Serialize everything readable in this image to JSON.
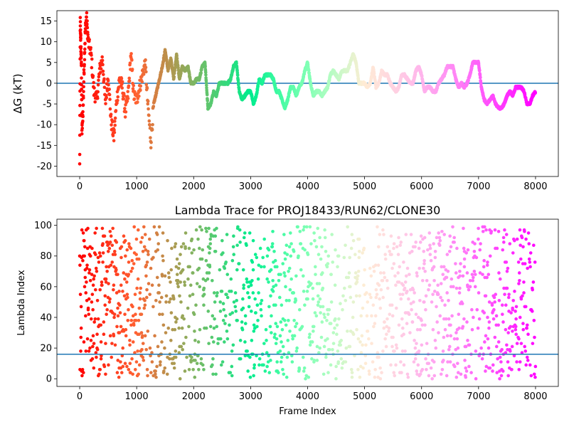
{
  "chart_data": [
    {
      "type": "scatter",
      "title": "",
      "xlabel": "",
      "ylabel": "ΔG (kT)",
      "xlim": [
        -400,
        8400
      ],
      "ylim": [
        -22.5,
        17.5
      ],
      "xticks": [
        0,
        1000,
        2000,
        3000,
        4000,
        5000,
        6000,
        7000,
        8000
      ],
      "yticks": [
        -20,
        -15,
        -10,
        -5,
        0,
        5,
        10,
        15
      ],
      "hline": 0,
      "hline_color": "#1f77b4",
      "colormap": "rainbow (red → purple with increasing frame index)",
      "points_sampled": [
        [
          0,
          -20
        ],
        [
          10,
          15
        ],
        [
          20,
          9
        ],
        [
          30,
          4
        ],
        [
          40,
          -12
        ],
        [
          60,
          -6
        ],
        [
          80,
          5
        ],
        [
          100,
          13
        ],
        [
          120,
          16
        ],
        [
          150,
          10
        ],
        [
          200,
          7
        ],
        [
          250,
          -2
        ],
        [
          300,
          -4
        ],
        [
          350,
          3
        ],
        [
          400,
          6
        ],
        [
          450,
          -5
        ],
        [
          500,
          2
        ],
        [
          550,
          -9
        ],
        [
          600,
          -13
        ],
        [
          650,
          -4
        ],
        [
          700,
          1
        ],
        [
          750,
          -1
        ],
        [
          800,
          -7
        ],
        [
          850,
          -3
        ],
        [
          900,
          7
        ],
        [
          950,
          -3
        ],
        [
          1000,
          -4
        ],
        [
          1050,
          -1
        ],
        [
          1100,
          2
        ],
        [
          1150,
          5
        ],
        [
          1200,
          -6
        ],
        [
          1250,
          -14
        ],
        [
          1300,
          -5
        ],
        [
          1350,
          -2
        ],
        [
          1400,
          1
        ],
        [
          1450,
          4
        ],
        [
          1500,
          8
        ],
        [
          1550,
          3
        ],
        [
          1600,
          6
        ],
        [
          1650,
          1
        ],
        [
          1700,
          7
        ],
        [
          1750,
          1
        ],
        [
          1800,
          4
        ],
        [
          1850,
          3
        ],
        [
          1900,
          4
        ],
        [
          1950,
          0
        ],
        [
          2000,
          0
        ],
        [
          2050,
          1
        ],
        [
          2100,
          1
        ],
        [
          2150,
          4
        ],
        [
          2200,
          5
        ],
        [
          2250,
          -6
        ],
        [
          2300,
          -5
        ],
        [
          2350,
          -2
        ],
        [
          2400,
          -3
        ],
        [
          2450,
          0
        ],
        [
          2500,
          0
        ],
        [
          2550,
          0
        ],
        [
          2600,
          0
        ],
        [
          2650,
          1
        ],
        [
          2700,
          4
        ],
        [
          2750,
          5
        ],
        [
          2800,
          -2
        ],
        [
          2850,
          -4
        ],
        [
          2900,
          -3
        ],
        [
          2950,
          -2
        ],
        [
          3000,
          -2
        ],
        [
          3050,
          -5
        ],
        [
          3100,
          -3
        ],
        [
          3150,
          1
        ],
        [
          3200,
          0
        ],
        [
          3250,
          2
        ],
        [
          3300,
          2
        ],
        [
          3350,
          2
        ],
        [
          3400,
          1
        ],
        [
          3450,
          -2
        ],
        [
          3500,
          -2
        ],
        [
          3550,
          -4
        ],
        [
          3600,
          -6
        ],
        [
          3650,
          -4
        ],
        [
          3700,
          -1
        ],
        [
          3750,
          -1
        ],
        [
          3800,
          -3
        ],
        [
          3850,
          -1
        ],
        [
          3900,
          0
        ],
        [
          3950,
          3
        ],
        [
          4000,
          5
        ],
        [
          4050,
          0
        ],
        [
          4100,
          -3
        ],
        [
          4150,
          -2
        ],
        [
          4200,
          -2
        ],
        [
          4250,
          -3
        ],
        [
          4300,
          -2
        ],
        [
          4350,
          -1
        ],
        [
          4400,
          2
        ],
        [
          4450,
          3
        ],
        [
          4500,
          2
        ],
        [
          4550,
          1
        ],
        [
          4600,
          3
        ],
        [
          4650,
          3
        ],
        [
          4700,
          3
        ],
        [
          4750,
          5
        ],
        [
          4800,
          7
        ],
        [
          4850,
          5
        ],
        [
          4900,
          0
        ],
        [
          4950,
          0
        ],
        [
          5000,
          0
        ],
        [
          5050,
          -1
        ],
        [
          5100,
          0
        ],
        [
          5150,
          4
        ],
        [
          5200,
          -1
        ],
        [
          5250,
          0
        ],
        [
          5300,
          3
        ],
        [
          5350,
          2
        ],
        [
          5400,
          2
        ],
        [
          5450,
          0
        ],
        [
          5500,
          -1
        ],
        [
          5550,
          -2
        ],
        [
          5600,
          -1
        ],
        [
          5650,
          2
        ],
        [
          5700,
          2
        ],
        [
          5750,
          1
        ],
        [
          5800,
          0
        ],
        [
          5850,
          0
        ],
        [
          5900,
          3
        ],
        [
          5950,
          4
        ],
        [
          6000,
          2
        ],
        [
          6050,
          -2
        ],
        [
          6100,
          -1
        ],
        [
          6150,
          -1
        ],
        [
          6200,
          -2
        ],
        [
          6250,
          -2
        ],
        [
          6300,
          0
        ],
        [
          6350,
          1
        ],
        [
          6400,
          2
        ],
        [
          6450,
          4
        ],
        [
          6500,
          4
        ],
        [
          6550,
          4
        ],
        [
          6600,
          1
        ],
        [
          6650,
          -1
        ],
        [
          6700,
          0
        ],
        [
          6750,
          -1
        ],
        [
          6800,
          0
        ],
        [
          6850,
          2
        ],
        [
          6900,
          5
        ],
        [
          6950,
          5
        ],
        [
          7000,
          5
        ],
        [
          7050,
          -1
        ],
        [
          7100,
          -4
        ],
        [
          7150,
          -5
        ],
        [
          7200,
          -4
        ],
        [
          7250,
          -3
        ],
        [
          7300,
          -5
        ],
        [
          7350,
          -6
        ],
        [
          7400,
          -6
        ],
        [
          7450,
          -5
        ],
        [
          7500,
          -3
        ],
        [
          7550,
          -2
        ],
        [
          7600,
          -3
        ],
        [
          7650,
          -1
        ],
        [
          7700,
          -1
        ],
        [
          7750,
          -1
        ],
        [
          7800,
          -2
        ],
        [
          7850,
          -5
        ],
        [
          7900,
          -5
        ],
        [
          7950,
          -3
        ],
        [
          8000,
          -2
        ]
      ]
    },
    {
      "type": "scatter",
      "title": "Lambda Trace for PROJ18433/RUN62/CLONE30",
      "xlabel": "Frame Index",
      "ylabel": "Lambda Index",
      "xlim": [
        -400,
        8400
      ],
      "ylim": [
        -5,
        104
      ],
      "xticks": [
        0,
        1000,
        2000,
        3000,
        4000,
        5000,
        6000,
        7000,
        8000
      ],
      "yticks": [
        0,
        20,
        40,
        60,
        80,
        100
      ],
      "hline": 16,
      "hline_color": "#1f77b4",
      "colormap": "rainbow (red → purple with increasing frame index)",
      "x_range": [
        0,
        8000
      ],
      "y_range": [
        0,
        99
      ]
    }
  ]
}
